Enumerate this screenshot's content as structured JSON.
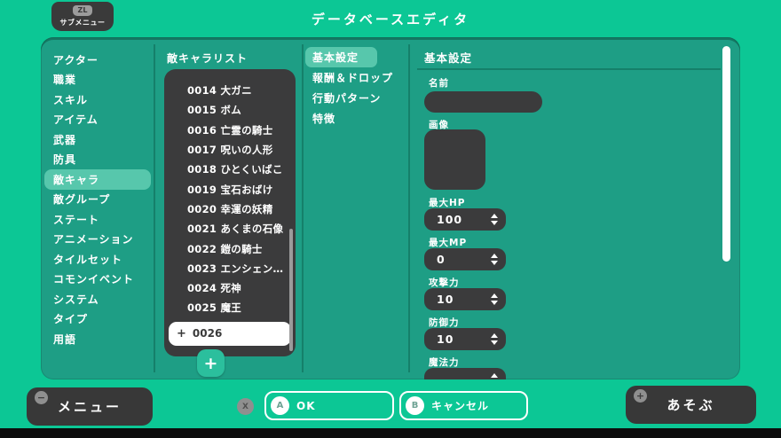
{
  "colors": {
    "background": "#0cc795",
    "panel": "#1e9e84",
    "selection_highlight": "#57c7ac",
    "dark_panel": "#3b3b3c",
    "add_button": "#2bbf9d"
  },
  "topbar": {
    "submenu_key": "ZL",
    "submenu_label": "サブメニュー",
    "title": "データベースエディタ"
  },
  "sidebar": {
    "items": [
      {
        "label": "アクター",
        "selected": false
      },
      {
        "label": "職業",
        "selected": false
      },
      {
        "label": "スキル",
        "selected": false
      },
      {
        "label": "アイテム",
        "selected": false
      },
      {
        "label": "武器",
        "selected": false
      },
      {
        "label": "防具",
        "selected": false
      },
      {
        "label": "敵キャラ",
        "selected": true
      },
      {
        "label": "敵グループ",
        "selected": false
      },
      {
        "label": "ステート",
        "selected": false
      },
      {
        "label": "アニメーション",
        "selected": false
      },
      {
        "label": "タイルセット",
        "selected": false
      },
      {
        "label": "コモンイベント",
        "selected": false
      },
      {
        "label": "システム",
        "selected": false
      },
      {
        "label": "タイプ",
        "selected": false
      },
      {
        "label": "用語",
        "selected": false
      }
    ]
  },
  "enemy_list": {
    "title": "敵キャラリスト",
    "items": [
      "0014 大ガニ",
      "0015 ボム",
      "0016 亡霊の騎士",
      "0017 呪いの人形",
      "0018 ひとくいばこ",
      "0019 宝石おばけ",
      "0020 幸運の妖精",
      "0021 あくまの石像",
      "0022 鎧の騎士",
      "0023 エンシェン…",
      "0024 死神",
      "0025 魔王"
    ],
    "new_entry": {
      "marker": "+",
      "id": "0026"
    },
    "add_button": "+"
  },
  "tabs": {
    "items": [
      {
        "label": "基本設定",
        "selected": true
      },
      {
        "label": "報酬＆ドロップ",
        "selected": false
      },
      {
        "label": "行動パターン",
        "selected": false
      },
      {
        "label": "特徴",
        "selected": false
      }
    ]
  },
  "form": {
    "title": "基本設定",
    "name_label": "名前",
    "name_value": "",
    "image_label": "画像",
    "stats": [
      {
        "label": "最大HP",
        "value": "100"
      },
      {
        "label": "最大MP",
        "value": "0"
      },
      {
        "label": "攻撃力",
        "value": "10"
      },
      {
        "label": "防御力",
        "value": "10"
      },
      {
        "label": "魔法力",
        "value": ""
      }
    ]
  },
  "footer": {
    "menu": {
      "badge": "−",
      "label": "メニュー"
    },
    "x_key": "X",
    "ok": {
      "key": "A",
      "label": "OK"
    },
    "cancel": {
      "key": "B",
      "label": "キャンセル"
    },
    "play": {
      "badge": "+",
      "label": "あそぶ"
    }
  }
}
